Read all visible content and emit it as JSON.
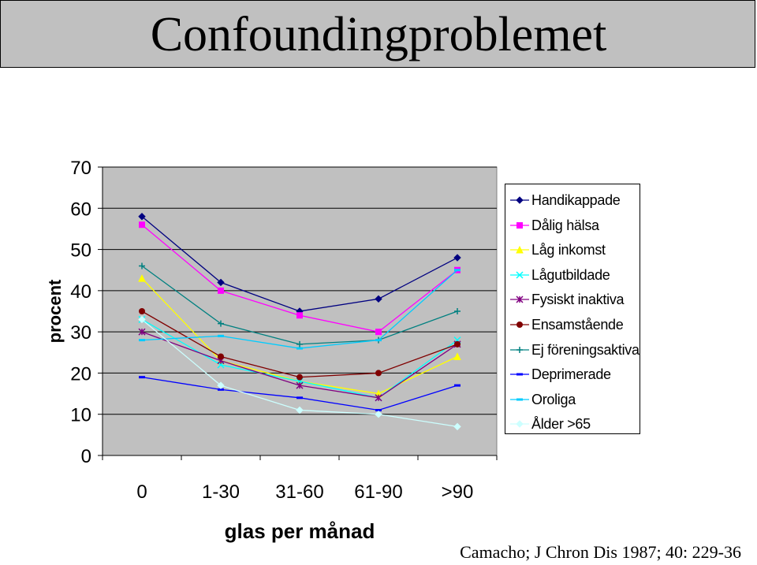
{
  "title": "Confoundingproblemet",
  "citation": "Camacho; J Chron Dis 1987; 40: 229-36",
  "chart_data": {
    "type": "line",
    "xlabel": "glas per månad",
    "ylabel": "procent",
    "ylim": [
      0,
      70
    ],
    "yticks": [
      0,
      10,
      20,
      30,
      40,
      50,
      60,
      70
    ],
    "categories": [
      "0",
      "1-30",
      "31-60",
      "61-90",
      ">90"
    ],
    "grid": true,
    "legend_position": "right",
    "series": [
      {
        "name": "Handikappade",
        "color": "#000080",
        "marker": "diamond",
        "values": [
          58,
          42,
          35,
          38,
          48
        ]
      },
      {
        "name": "Dålig hälsa",
        "color": "#ff00ff",
        "marker": "square",
        "values": [
          56,
          40,
          34,
          30,
          45
        ]
      },
      {
        "name": "Låg inkomst",
        "color": "#ffff00",
        "marker": "triangle",
        "values": [
          43,
          23,
          18,
          15,
          24
        ]
      },
      {
        "name": "Lågutbildade",
        "color": "#00ffff",
        "marker": "x",
        "values": [
          33,
          22,
          18,
          14,
          28
        ]
      },
      {
        "name": "Fysiskt inaktiva",
        "color": "#800080",
        "marker": "star",
        "values": [
          30,
          23,
          17,
          14,
          27
        ]
      },
      {
        "name": "Ensamstående",
        "color": "#800000",
        "marker": "circle",
        "values": [
          35,
          24,
          19,
          20,
          27
        ]
      },
      {
        "name": "Ej föreningsaktiva",
        "color": "#008080",
        "marker": "plus",
        "values": [
          46,
          32,
          27,
          28,
          35
        ]
      },
      {
        "name": "Deprimerade",
        "color": "#0000ff",
        "marker": "dash",
        "values": [
          19,
          16,
          14,
          11,
          17
        ]
      },
      {
        "name": "Oroliga",
        "color": "#00ccff",
        "marker": "dash",
        "values": [
          28,
          29,
          26,
          28,
          45
        ]
      },
      {
        "name": "Ålder >65",
        "color": "#ccffff",
        "marker": "diamond",
        "values": [
          33,
          17,
          11,
          10,
          7
        ]
      }
    ]
  }
}
